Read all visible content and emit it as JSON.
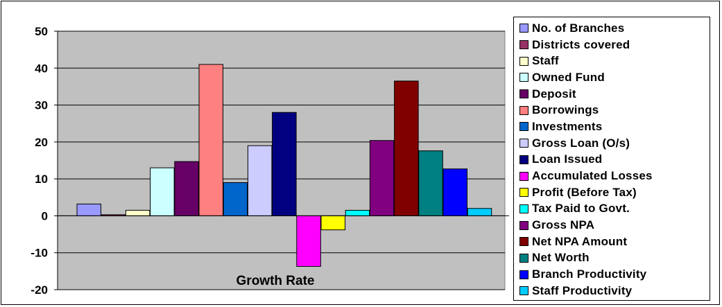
{
  "chart_data": {
    "type": "bar",
    "title": "Growth Rate",
    "xlabel": "",
    "ylabel": "",
    "ylim": [
      -20,
      50
    ],
    "yticks": [
      -20,
      -10,
      0,
      10,
      20,
      30,
      40,
      50
    ],
    "grid": true,
    "legend_position": "right",
    "series": [
      {
        "name": "No. of Branches",
        "value": 3.2,
        "color": "#9999ff"
      },
      {
        "name": "Districts covered",
        "value": 0.3,
        "color": "#993366"
      },
      {
        "name": "Staff",
        "value": 1.5,
        "color": "#ffffcc"
      },
      {
        "name": "Owned Fund",
        "value": 13,
        "color": "#ccffff"
      },
      {
        "name": "Deposit",
        "value": 14.7,
        "color": "#660066"
      },
      {
        "name": "Borrowings",
        "value": 41,
        "color": "#ff8080"
      },
      {
        "name": "Investments",
        "value": 9,
        "color": "#0066cc"
      },
      {
        "name": "Gross Loan (O/s)",
        "value": 19,
        "color": "#ccccff"
      },
      {
        "name": "Loan Issued",
        "value": 28,
        "color": "#000080"
      },
      {
        "name": "Accumulated Losses",
        "value": -13.7,
        "color": "#ff00ff"
      },
      {
        "name": "Profit (Before Tax)",
        "value": -3.8,
        "color": "#ffff00"
      },
      {
        "name": "Tax Paid to Govt.",
        "value": 1.5,
        "color": "#00ffff"
      },
      {
        "name": "Gross NPA",
        "value": 20.4,
        "color": "#800080"
      },
      {
        "name": "Net NPA Amount",
        "value": 36.5,
        "color": "#800000"
      },
      {
        "name": "Net Worth",
        "value": 17.6,
        "color": "#008080"
      },
      {
        "name": "Branch Productivity",
        "value": 12.7,
        "color": "#0000ff"
      },
      {
        "name": "Staff Productivity",
        "value": 2,
        "color": "#00ccff"
      }
    ],
    "plot_background": "#c0c0c0"
  }
}
